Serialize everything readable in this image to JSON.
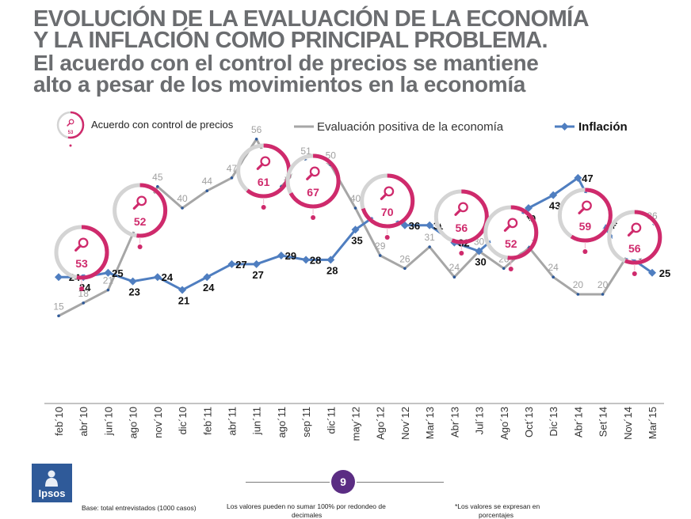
{
  "title": {
    "line1": "EVOLUCIÓN DE LA EVALUACIÓN DE LA ECONOMÍA",
    "line2": "Y LA INFLACIÓN COMO PRINCIPAL PROBLEMA.",
    "line3": "El acuerdo con el control de precios se mantiene",
    "line4": "alto a pesar de los movimientos en la economía"
  },
  "footer": {
    "base": "Base: total entrevistados (1000 casos)",
    "rounding_line1": "Los valores pueden no sumar 100% por  redondeo de",
    "rounding_line2": "decimales",
    "percent_line1": "*Los valores se expresan en",
    "percent_line2": "porcentajes",
    "page": "9",
    "logo": "Ipsos"
  },
  "colors": {
    "gray": "#a6a6a6",
    "blue": "#4f7ec0",
    "magenta": "#cf2a6c",
    "ring_gray": "#d4d4d4",
    "title": "#6b6d70"
  },
  "chart_data": {
    "type": "line",
    "categories": [
      "feb´10",
      "abr´10",
      "jun´10",
      "ago´10",
      "nov´10",
      "dic´10",
      "feb´11",
      "abr´11",
      "jun´11",
      "ago´11",
      "sep´11",
      "dic´11",
      "may´12",
      "Ago´12",
      "Nov´12",
      "Mar´13",
      "Abr´13",
      "Jul´13",
      "Ago´13",
      "Oct´13",
      "Dic´13",
      "Abr´14",
      "Set´14",
      "Nov´14",
      "Mar´15"
    ],
    "series": [
      {
        "name": "Evaluación positiva de la economía",
        "color": "#a6a6a6",
        "values": [
          15,
          18,
          21,
          34,
          45,
          40,
          44,
          47,
          56,
          45,
          51,
          50,
          40,
          29,
          26,
          31,
          24,
          30,
          26,
          31,
          24,
          20,
          20,
          29,
          36
        ]
      },
      {
        "name": "Inflación",
        "color": "#4f7ec0",
        "values": [
          24,
          24,
          25,
          23,
          24,
          21,
          24,
          27,
          27,
          29,
          28,
          28,
          35,
          39,
          36,
          36,
          32,
          30,
          35,
          40,
          43,
          47,
          36,
          29,
          25
        ]
      }
    ],
    "legend": {
      "control": "Acuerdo con control de precios",
      "control_icon_value": "53"
    },
    "control_precios": [
      {
        "category": "feb´10",
        "value": 53
      },
      {
        "category": "ago´10",
        "value": 52
      },
      {
        "category": "jun´11",
        "value": 61
      },
      {
        "category": "sep´11",
        "value": 67
      },
      {
        "category": "Ago´12",
        "value": 70
      },
      {
        "category": "Abr´13",
        "value": 56
      },
      {
        "category": "Ago´13",
        "value": 52
      },
      {
        "category": "Abr´14",
        "value": 59
      },
      {
        "category": "Nov´14",
        "value": 56
      }
    ],
    "ylim": [
      0,
      75
    ],
    "legend_position": "top",
    "grid": false
  }
}
